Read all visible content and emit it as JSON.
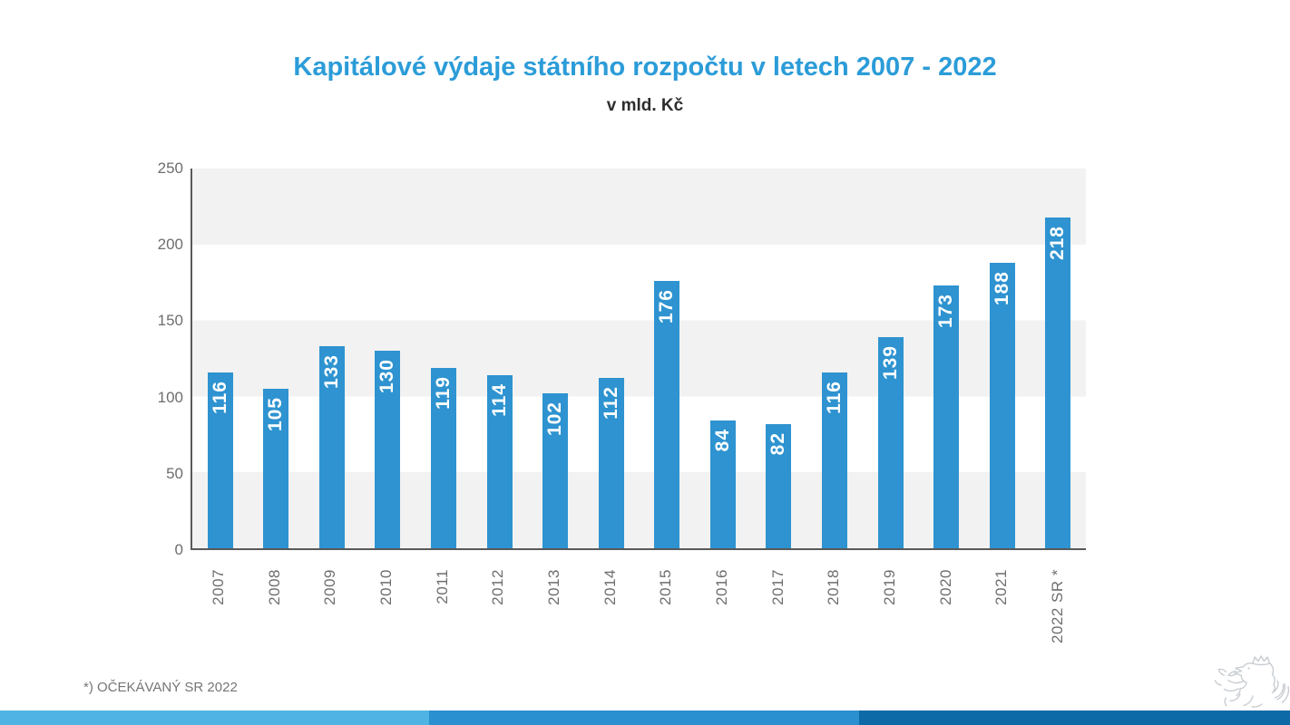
{
  "title": "Kapitálové výdaje státního rozpočtu v letech 2007 - 2022",
  "subtitle": "v mld. Kč",
  "footnote": "*) OČEKÁVANÝ SR 2022",
  "chart_data": {
    "type": "bar",
    "title": "Kapitálové výdaje státního rozpočtu v letech 2007 - 2022",
    "subtitle": "v mld. Kč",
    "categories": [
      "2007",
      "2008",
      "2009",
      "2010",
      "2011",
      "2012",
      "2013",
      "2014",
      "2015",
      "2016",
      "2017",
      "2018",
      "2019",
      "2020",
      "2021",
      "2022 SR *"
    ],
    "values": [
      116,
      105,
      133,
      130,
      119,
      114,
      102,
      112,
      176,
      84,
      82,
      116,
      139,
      173,
      188,
      218
    ],
    "xlabel": "",
    "ylabel": "",
    "ylim": [
      0,
      250
    ],
    "yticks": [
      250,
      200,
      150,
      100,
      50,
      0
    ],
    "grid": "horizontal-bands-every-50",
    "legend_position": "none",
    "value_labels": "inside-top-rotated-90"
  },
  "colors": {
    "title": "#2B9CD8",
    "subtitle": "#2D2D2D",
    "bar": "#2E93D0",
    "bar_value_label": "#FFFFFF",
    "plot_band": "#F2F2F2",
    "axis_line": "#595959",
    "tick_label": "#6E6E6E",
    "footnote": "#757575",
    "stripe_segments": [
      "#4FB4E3",
      "#2A90CF",
      "#0D6AA7"
    ],
    "logo_outline": "#C8CDD2"
  },
  "logo": {
    "name": "czech-heraldic-lion-emblem"
  }
}
